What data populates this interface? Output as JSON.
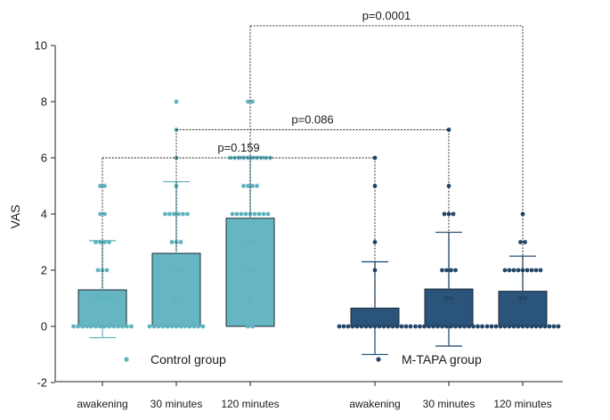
{
  "chart_data": {
    "type": "bar",
    "title": "",
    "xlabel": "",
    "ylabel": "VAS",
    "ylim": [
      -2,
      10
    ],
    "yticks": [
      -2,
      0,
      2,
      4,
      6,
      8,
      10
    ],
    "categories": [
      "awakening",
      "30 minutes",
      "120 minutes",
      "awakening",
      "30 minutes",
      "120 minutes"
    ],
    "colors": {
      "control": "#66b5c2",
      "mtapa": "#2a5479",
      "control_points": "#5fb3c1",
      "mtapa_points": "#24476a"
    },
    "series": [
      {
        "name": "Control group",
        "group": "control",
        "bars": [
          {
            "category": "awakening",
            "mean": 1.3,
            "sd_low": -0.4,
            "sd_high": 3.05,
            "points": [
              0,
              0,
              0,
              0,
              0,
              0,
              0,
              0,
              0,
              0,
              0,
              0,
              0,
              0,
              1,
              1,
              1,
              1,
              1,
              2,
              2,
              2,
              3,
              3,
              3,
              3,
              4,
              4,
              5,
              5
            ]
          },
          {
            "category": "30 minutes",
            "mean": 2.6,
            "sd_low": 0,
            "sd_high": 5.15,
            "points": [
              0,
              0,
              0,
              0,
              0,
              0,
              0,
              0,
              0,
              0,
              0,
              0,
              0,
              1,
              1,
              2,
              2,
              3,
              3,
              3,
              4,
              4,
              4,
              4,
              4,
              4,
              5,
              6,
              7,
              8
            ]
          },
          {
            "category": "120 minutes",
            "mean": 3.85,
            "sd_low": 0,
            "sd_high": 6.05,
            "points": [
              0,
              0,
              1,
              2,
              2,
              3,
              3,
              4,
              4,
              4,
              4,
              4,
              4,
              4,
              4,
              4,
              5,
              5,
              5,
              5,
              6,
              6,
              6,
              6,
              6,
              6,
              6,
              6,
              6,
              6,
              8,
              8
            ]
          }
        ]
      },
      {
        "name": "M-TAPA group",
        "group": "mtapa",
        "bars": [
          {
            "category": "awakening",
            "mean": 0.65,
            "sd_low": -1.0,
            "sd_high": 2.3,
            "points": [
              0,
              0,
              0,
              0,
              0,
              0,
              0,
              0,
              0,
              0,
              0,
              0,
              0,
              0,
              0,
              0,
              0,
              2,
              3,
              5,
              6
            ]
          },
          {
            "category": "30 minutes",
            "mean": 1.33,
            "sd_low": -0.7,
            "sd_high": 3.35,
            "points": [
              0,
              0,
              0,
              0,
              0,
              0,
              0,
              0,
              0,
              0,
              0,
              0,
              0,
              0,
              0,
              0,
              1,
              1,
              2,
              2,
              2,
              2,
              4,
              4,
              4,
              5,
              7
            ]
          },
          {
            "category": "120 minutes",
            "mean": 1.25,
            "sd_low": 0,
            "sd_high": 2.5,
            "points": [
              0,
              0,
              0,
              0,
              0,
              0,
              0,
              0,
              0,
              0,
              0,
              0,
              0,
              0,
              0,
              0,
              0,
              1,
              1,
              2,
              2,
              2,
              2,
              2,
              2,
              2,
              2,
              2,
              3,
              3,
              4
            ]
          }
        ]
      }
    ],
    "comparisons": [
      {
        "label": "p=0.159",
        "from_bar": 0,
        "to_bar": 3,
        "y": 6.0
      },
      {
        "label": "p=0.086",
        "from_bar": 1,
        "to_bar": 4,
        "y": 7.0
      },
      {
        "label": "p=0.0001",
        "from_bar": 2,
        "to_bar": 5,
        "y": 10.7
      }
    ],
    "legend": {
      "placement": "bottom",
      "control": "Control group",
      "mtapa": "M-TAPA group"
    }
  }
}
